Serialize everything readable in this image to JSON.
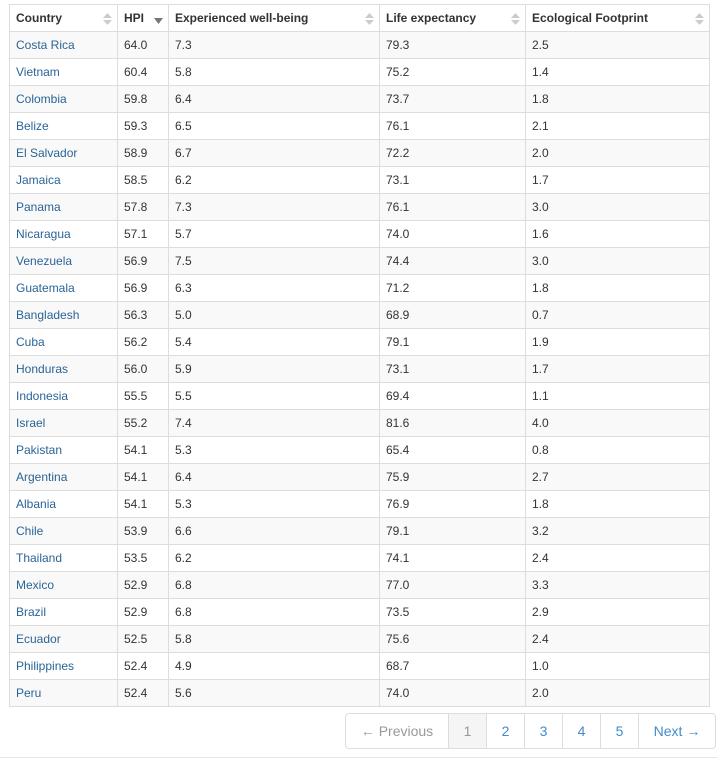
{
  "table": {
    "columns": [
      "Country",
      "HPI",
      "Experienced well-being",
      "Life expectancy",
      "Ecological Footprint"
    ],
    "rows": [
      [
        "Costa Rica",
        "64.0",
        "7.3",
        "79.3",
        "2.5"
      ],
      [
        "Vietnam",
        "60.4",
        "5.8",
        "75.2",
        "1.4"
      ],
      [
        "Colombia",
        "59.8",
        "6.4",
        "73.7",
        "1.8"
      ],
      [
        "Belize",
        "59.3",
        "6.5",
        "76.1",
        "2.1"
      ],
      [
        "El Salvador",
        "58.9",
        "6.7",
        "72.2",
        "2.0"
      ],
      [
        "Jamaica",
        "58.5",
        "6.2",
        "73.1",
        "1.7"
      ],
      [
        "Panama",
        "57.8",
        "7.3",
        "76.1",
        "3.0"
      ],
      [
        "Nicaragua",
        "57.1",
        "5.7",
        "74.0",
        "1.6"
      ],
      [
        "Venezuela",
        "56.9",
        "7.5",
        "74.4",
        "3.0"
      ],
      [
        "Guatemala",
        "56.9",
        "6.3",
        "71.2",
        "1.8"
      ],
      [
        "Bangladesh",
        "56.3",
        "5.0",
        "68.9",
        "0.7"
      ],
      [
        "Cuba",
        "56.2",
        "5.4",
        "79.1",
        "1.9"
      ],
      [
        "Honduras",
        "56.0",
        "5.9",
        "73.1",
        "1.7"
      ],
      [
        "Indonesia",
        "55.5",
        "5.5",
        "69.4",
        "1.1"
      ],
      [
        "Israel",
        "55.2",
        "7.4",
        "81.6",
        "4.0"
      ],
      [
        "Pakistan",
        "54.1",
        "5.3",
        "65.4",
        "0.8"
      ],
      [
        "Argentina",
        "54.1",
        "6.4",
        "75.9",
        "2.7"
      ],
      [
        "Albania",
        "54.1",
        "5.3",
        "76.9",
        "1.8"
      ],
      [
        "Chile",
        "53.9",
        "6.6",
        "79.1",
        "3.2"
      ],
      [
        "Thailand",
        "53.5",
        "6.2",
        "74.1",
        "2.4"
      ],
      [
        "Mexico",
        "52.9",
        "6.8",
        "77.0",
        "3.3"
      ],
      [
        "Brazil",
        "52.9",
        "6.8",
        "73.5",
        "2.9"
      ],
      [
        "Ecuador",
        "52.5",
        "5.8",
        "75.6",
        "2.4"
      ],
      [
        "Philippines",
        "52.4",
        "4.9",
        "68.7",
        "1.0"
      ],
      [
        "Peru",
        "52.4",
        "5.6",
        "74.0",
        "2.0"
      ]
    ]
  },
  "pagination": {
    "previous": "← Previous",
    "pages": [
      "1",
      "2",
      "3",
      "4",
      "5"
    ],
    "next": "Next →"
  }
}
